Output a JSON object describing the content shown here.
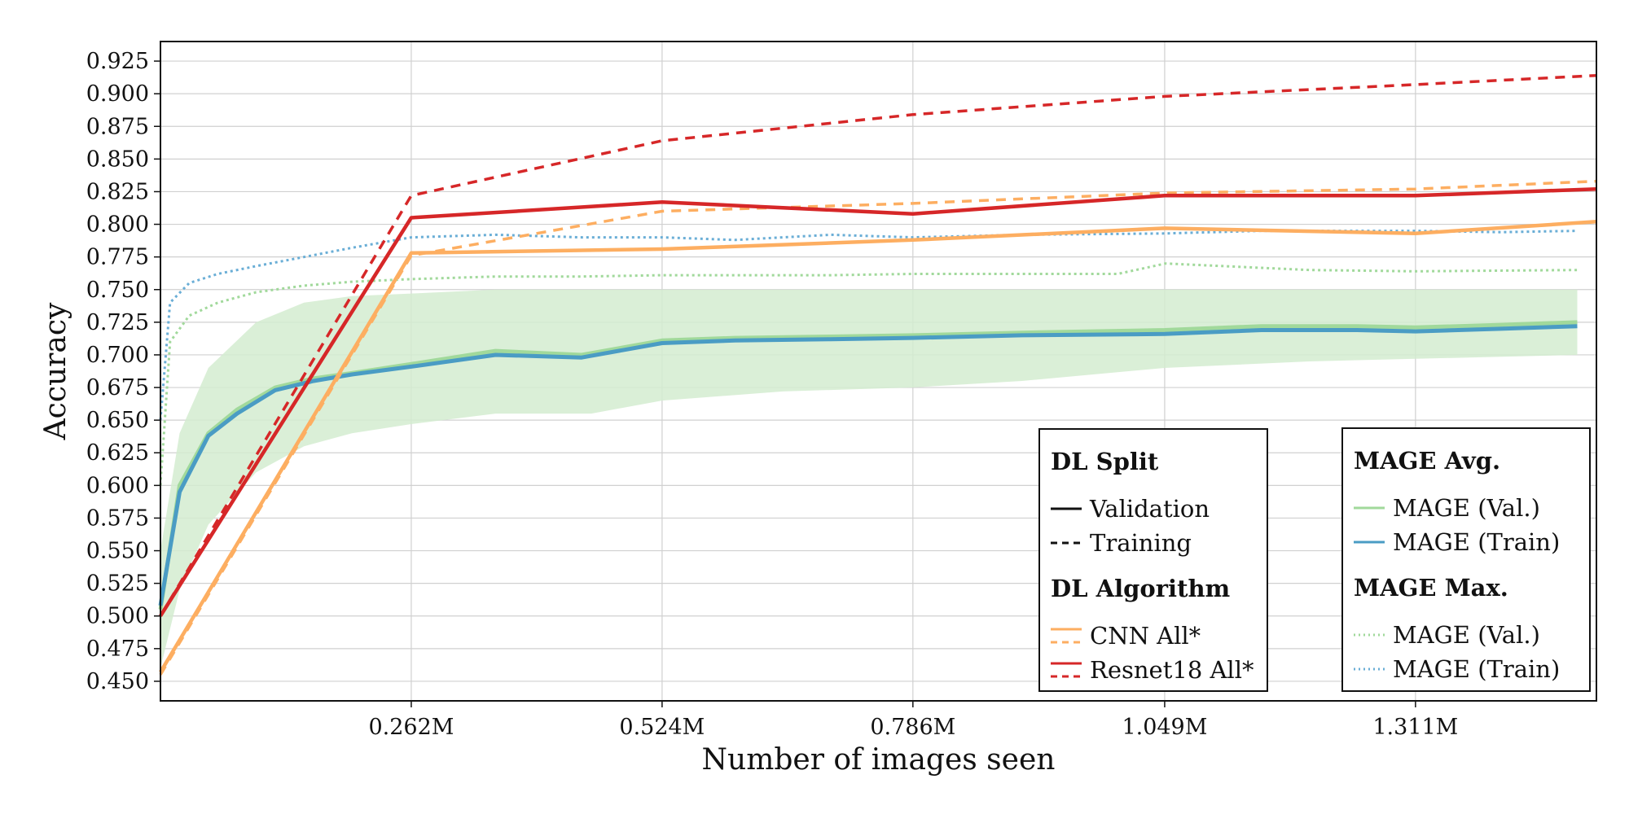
{
  "chart_data": {
    "type": "line",
    "xlabel": "Number of images seen",
    "ylabel": "Accuracy",
    "xlim": [
      0,
      1.5
    ],
    "ylim": [
      0.435,
      0.94
    ],
    "x_ticks": [
      {
        "value": 0.262,
        "label": "0.262M"
      },
      {
        "value": 0.524,
        "label": "0.524M"
      },
      {
        "value": 0.786,
        "label": "0.786M"
      },
      {
        "value": 1.049,
        "label": "1.049M"
      },
      {
        "value": 1.311,
        "label": "1.311M"
      }
    ],
    "y_ticks": [
      0.45,
      0.475,
      0.5,
      0.525,
      0.55,
      0.575,
      0.6,
      0.625,
      0.65,
      0.675,
      0.7,
      0.725,
      0.75,
      0.775,
      0.8,
      0.825,
      0.85,
      0.875,
      0.9,
      0.925
    ],
    "grid": true,
    "colors": {
      "resnet": "#d62728",
      "cnn": "#fdae61",
      "mage_val": "#a1d99b",
      "mage_train": "#4a9cc4",
      "mage_train_max": "#6aaed6",
      "band": "#d3ecd0"
    },
    "series": [
      {
        "name": "Resnet18 All* (Validation)",
        "style": "solid",
        "color": "#d62728",
        "x": [
          0.0,
          0.262,
          0.524,
          0.786,
          1.049,
          1.311,
          1.5
        ],
        "y": [
          0.5,
          0.805,
          0.817,
          0.808,
          0.822,
          0.822,
          0.827
        ]
      },
      {
        "name": "Resnet18 All* (Training)",
        "style": "dashed",
        "color": "#d62728",
        "x": [
          0.0,
          0.262,
          0.524,
          0.786,
          1.049,
          1.311,
          1.5
        ],
        "y": [
          0.5,
          0.822,
          0.864,
          0.884,
          0.898,
          0.907,
          0.914
        ]
      },
      {
        "name": "CNN All* (Validation)",
        "style": "solid",
        "color": "#fdae61",
        "x": [
          0.0,
          0.262,
          0.524,
          0.786,
          1.049,
          1.311,
          1.5
        ],
        "y": [
          0.457,
          0.778,
          0.781,
          0.788,
          0.797,
          0.793,
          0.802
        ]
      },
      {
        "name": "CNN All* (Training)",
        "style": "dashed",
        "color": "#fdae61",
        "x": [
          0.0,
          0.262,
          0.524,
          0.786,
          1.049,
          1.311,
          1.5
        ],
        "y": [
          0.455,
          0.776,
          0.81,
          0.816,
          0.824,
          0.827,
          0.833
        ]
      },
      {
        "name": "MAGE Avg. (Val.)",
        "style": "solid",
        "color": "#a1d99b",
        "x": [
          0.0,
          0.02,
          0.05,
          0.08,
          0.12,
          0.16,
          0.2,
          0.262,
          0.35,
          0.44,
          0.524,
          0.6,
          0.7,
          0.786,
          0.9,
          1.049,
          1.15,
          1.25,
          1.311,
          1.4,
          1.48
        ],
        "y": [
          0.505,
          0.6,
          0.64,
          0.658,
          0.675,
          0.682,
          0.686,
          0.693,
          0.703,
          0.7,
          0.711,
          0.713,
          0.714,
          0.715,
          0.717,
          0.719,
          0.722,
          0.722,
          0.721,
          0.723,
          0.725
        ]
      },
      {
        "name": "MAGE Avg. (Train)",
        "style": "solid",
        "color": "#4a9cc4",
        "x": [
          0.0,
          0.02,
          0.05,
          0.08,
          0.12,
          0.16,
          0.2,
          0.262,
          0.35,
          0.44,
          0.524,
          0.6,
          0.7,
          0.786,
          0.9,
          1.049,
          1.15,
          1.25,
          1.311,
          1.4,
          1.48
        ],
        "y": [
          0.508,
          0.595,
          0.638,
          0.655,
          0.673,
          0.68,
          0.685,
          0.691,
          0.7,
          0.698,
          0.709,
          0.711,
          0.712,
          0.713,
          0.715,
          0.716,
          0.719,
          0.719,
          0.718,
          0.72,
          0.722
        ]
      },
      {
        "name": "MAGE Max. (Val.)",
        "style": "dotted",
        "color": "#a1d99b",
        "x": [
          0.0,
          0.01,
          0.03,
          0.06,
          0.1,
          0.15,
          0.2,
          0.262,
          0.35,
          0.44,
          0.524,
          0.7,
          0.786,
          1.0,
          1.05,
          1.2,
          1.311,
          1.48
        ],
        "y": [
          0.6,
          0.71,
          0.73,
          0.74,
          0.748,
          0.753,
          0.756,
          0.758,
          0.76,
          0.76,
          0.761,
          0.761,
          0.762,
          0.762,
          0.77,
          0.765,
          0.764,
          0.765
        ]
      },
      {
        "name": "MAGE Max. (Train)",
        "style": "dotted",
        "color": "#6aaed6",
        "x": [
          0.0,
          0.01,
          0.03,
          0.06,
          0.1,
          0.15,
          0.2,
          0.262,
          0.35,
          0.44,
          0.524,
          0.6,
          0.7,
          0.786,
          0.9,
          1.049,
          1.15,
          1.25,
          1.311,
          1.4,
          1.48
        ],
        "y": [
          0.65,
          0.74,
          0.755,
          0.762,
          0.768,
          0.775,
          0.782,
          0.79,
          0.792,
          0.79,
          0.79,
          0.788,
          0.792,
          0.79,
          0.792,
          0.793,
          0.795,
          0.795,
          0.795,
          0.794,
          0.795
        ]
      }
    ],
    "band": {
      "name": "MAGE Avg. (Val.) range",
      "color": "#d3ecd0",
      "x": [
        0.0,
        0.02,
        0.05,
        0.1,
        0.15,
        0.2,
        0.262,
        0.35,
        0.45,
        0.524,
        0.65,
        0.786,
        0.9,
        1.049,
        1.2,
        1.311,
        1.48
      ],
      "lower": [
        0.46,
        0.52,
        0.57,
        0.61,
        0.63,
        0.64,
        0.647,
        0.655,
        0.655,
        0.665,
        0.672,
        0.675,
        0.68,
        0.69,
        0.695,
        0.697,
        0.7
      ],
      "upper": [
        0.55,
        0.64,
        0.69,
        0.725,
        0.74,
        0.745,
        0.747,
        0.75,
        0.75,
        0.75,
        0.75,
        0.75,
        0.75,
        0.75,
        0.75,
        0.75,
        0.75
      ]
    },
    "legends": [
      {
        "id": "dl",
        "placement": "bottom-right-inner",
        "sections": [
          {
            "title": "DL Split",
            "items": [
              {
                "label": "Validation",
                "style": "solid",
                "color": "#111111"
              },
              {
                "label": "Training",
                "style": "dashed",
                "color": "#111111"
              }
            ]
          },
          {
            "title": "DL Algorithm",
            "items": [
              {
                "label": "CNN All*",
                "style": "solid-dashed",
                "color": "#fdae61"
              },
              {
                "label": "Resnet18 All*",
                "style": "solid-dashed",
                "color": "#d62728"
              }
            ]
          }
        ]
      },
      {
        "id": "mage",
        "placement": "bottom-right",
        "sections": [
          {
            "title": "MAGE Avg.",
            "items": [
              {
                "label": "MAGE (Val.)",
                "style": "solid",
                "color": "#a1d99b"
              },
              {
                "label": "MAGE (Train)",
                "style": "solid",
                "color": "#4a9cc4"
              }
            ]
          },
          {
            "title": "MAGE Max.",
            "items": [
              {
                "label": "MAGE (Val.)",
                "style": "dotted",
                "color": "#a1d99b"
              },
              {
                "label": "MAGE (Train)",
                "style": "dotted",
                "color": "#6aaed6"
              }
            ]
          }
        ]
      }
    ]
  }
}
